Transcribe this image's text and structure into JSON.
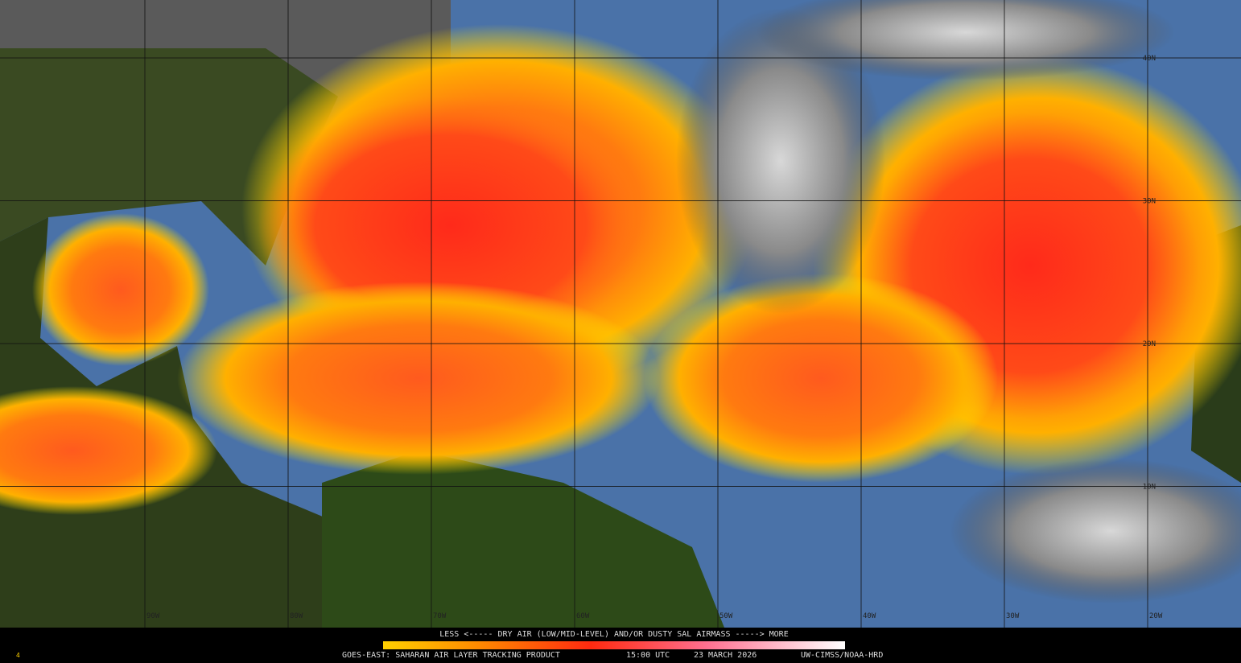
{
  "map": {
    "lat_labels": [
      "40N",
      "30N",
      "20N",
      "10N"
    ],
    "lon_labels": [
      "90W",
      "80W",
      "70W",
      "60W",
      "50W",
      "40W",
      "30W",
      "20W"
    ]
  },
  "colorbar": {
    "caption": "LESS <----- DRY AIR (LOW/MID-LEVEL) AND/OR DUSTY SAL AIRMASS -----> MORE"
  },
  "footer": {
    "product": "GOES-EAST: SAHARAN AIR LAYER TRACKING PRODUCT",
    "time": "15:00 UTC",
    "date": "23 MARCH 2026",
    "credit": "UW-CIMSS/NOAA-HRD",
    "frame": "4"
  }
}
